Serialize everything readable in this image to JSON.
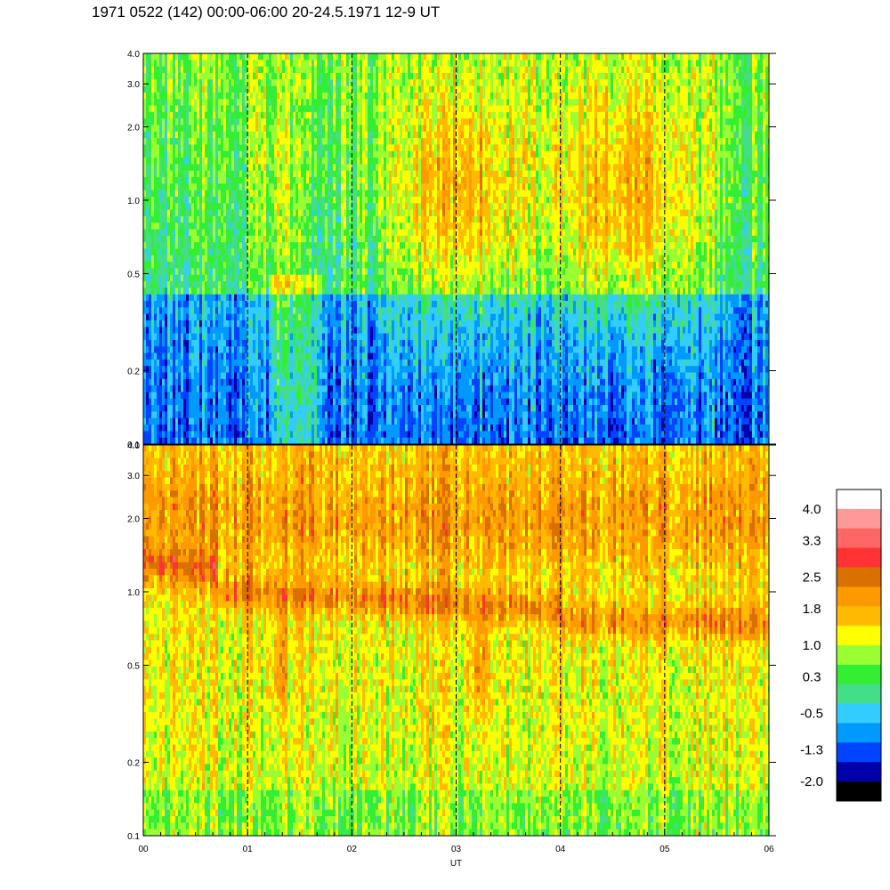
{
  "title": "1971 0522 (142) 00:00-06:00 20-24.5.1971  12-9 UT",
  "chart_data": {
    "type": "heatmap",
    "xlabel": "UT",
    "x_ticks": [
      "00",
      "01",
      "02",
      "03",
      "04",
      "05",
      "06"
    ],
    "x_range": [
      0,
      6
    ],
    "panels": [
      {
        "name": "upper",
        "y_scale": "log",
        "y_range": [
          0.1,
          4.0
        ],
        "y_ticks": [
          {
            "value": 0.1,
            "label": "0.1"
          },
          {
            "value": 0.2,
            "label": "0.2"
          },
          {
            "value": 0.5,
            "label": "0.5"
          },
          {
            "value": 1.0,
            "label": "1.0"
          },
          {
            "value": 2.0,
            "label": "2.0"
          },
          {
            "value": 3.0,
            "label": "3.0"
          },
          {
            "value": 4.0,
            "label": "4.0"
          }
        ],
        "hour_marker_lines": "dashed"
      },
      {
        "name": "lower",
        "y_scale": "log",
        "y_range": [
          0.1,
          4.0
        ],
        "y_ticks": [
          {
            "value": 0.1,
            "label": "0.1"
          },
          {
            "value": 0.2,
            "label": "0.2"
          },
          {
            "value": 0.5,
            "label": "0.5"
          },
          {
            "value": 1.0,
            "label": "1.0"
          },
          {
            "value": 2.0,
            "label": "2.0"
          },
          {
            "value": 3.0,
            "label": "3.0"
          },
          {
            "value": 4.0,
            "label": "4.0"
          }
        ],
        "hour_marker_lines": "dashed"
      }
    ],
    "colorbar": {
      "range": [
        -2.0,
        4.0
      ],
      "labels": [
        "4.0",
        "3.3",
        "2.5",
        "1.8",
        "1.0",
        "0.3",
        "-0.5",
        "-1.3",
        "-2.0"
      ],
      "colors": [
        "#ffffff",
        "#ff9999",
        "#ff6666",
        "#ff3333",
        "#d97000",
        "#ff9900",
        "#ffbb00",
        "#ffff00",
        "#99ff33",
        "#33ee33",
        "#44dd88",
        "#33ccff",
        "#0099ff",
        "#0044ff",
        "#0000aa",
        "#000000"
      ]
    }
  }
}
